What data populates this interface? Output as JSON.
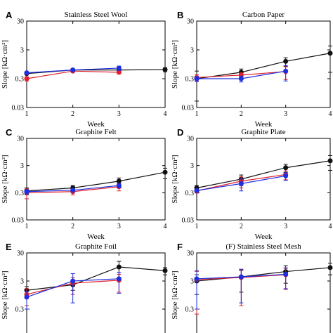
{
  "figure": {
    "ylabel": "Slope [kΩ·cm²]",
    "xlabel": "Week"
  },
  "colors": {
    "black": "#111111",
    "red": "#e0202a",
    "blue": "#1f2fe0",
    "axis": "#000000"
  },
  "chart_data": [
    {
      "letter": "A",
      "type": "line",
      "scale": "log",
      "title": "Stainless Steel Wool",
      "xlabel": "Week",
      "ylabel": "Slope [kΩ·cm²]",
      "xlim": [
        1,
        4
      ],
      "ylim": [
        0.03,
        30
      ],
      "xticks": [
        "1",
        "2",
        "3",
        "4"
      ],
      "yticks": [
        "0.03",
        "0.3",
        "3",
        "30"
      ],
      "series": [
        {
          "color": "black",
          "x": [
            1,
            2,
            3,
            4
          ],
          "y": [
            0.45,
            0.6,
            0.6,
            0.62
          ],
          "err": [
            0.03,
            0.04,
            0.04,
            0.1
          ]
        },
        {
          "color": "red",
          "x": [
            1,
            2,
            3
          ],
          "y": [
            0.3,
            0.55,
            0.5
          ],
          "err": [
            0.05,
            0.04,
            0.06
          ]
        },
        {
          "color": "blue",
          "x": [
            1,
            2,
            3
          ],
          "y": [
            0.48,
            0.6,
            0.7
          ],
          "err": [
            0.03,
            0.05,
            0.12
          ]
        }
      ]
    },
    {
      "letter": "B",
      "type": "line",
      "scale": "log",
      "title": "Carbon Paper",
      "xlabel": "Week",
      "ylabel": "Slope [kΩ·cm²]",
      "xlim": [
        1,
        4
      ],
      "ylim": [
        0.03,
        30
      ],
      "xticks": [
        "1",
        "2",
        "3",
        "4"
      ],
      "yticks": [
        "0.03",
        "0.3",
        "3",
        "30"
      ],
      "series": [
        {
          "color": "black",
          "x": [
            1,
            2,
            3,
            4
          ],
          "y": [
            0.3,
            0.5,
            1.2,
            2.3
          ],
          "err": [
            0.25,
            0.15,
            0.4,
            1.8
          ]
        },
        {
          "color": "red",
          "x": [
            1,
            2,
            3
          ],
          "y": [
            0.33,
            0.4,
            0.53
          ],
          "err": [
            0.08,
            0.08,
            0.25
          ]
        },
        {
          "color": "blue",
          "x": [
            1,
            2,
            3
          ],
          "y": [
            0.3,
            0.3,
            0.55
          ],
          "err": [
            0.06,
            0.07,
            0.3
          ]
        }
      ]
    },
    {
      "letter": "C",
      "type": "line",
      "scale": "log",
      "title": "Graphite Felt",
      "xlabel": "Week",
      "ylabel": "Slope [kΩ·cm²]",
      "xlim": [
        1,
        4
      ],
      "ylim": [
        0.03,
        30
      ],
      "xticks": [
        "1",
        "2",
        "3",
        "4"
      ],
      "yticks": [
        "0.03",
        "0.3",
        "3",
        "30"
      ],
      "series": [
        {
          "color": "black",
          "x": [
            1,
            2,
            3,
            4
          ],
          "y": [
            0.35,
            0.45,
            0.8,
            1.7
          ],
          "err": [
            0.1,
            0.1,
            0.25,
            0.7
          ]
        },
        {
          "color": "red",
          "x": [
            1,
            2,
            3
          ],
          "y": [
            0.3,
            0.33,
            0.5
          ],
          "err": [
            0.12,
            0.08,
            0.15
          ]
        },
        {
          "color": "blue",
          "x": [
            1,
            2,
            3
          ],
          "y": [
            0.33,
            0.37,
            0.55
          ],
          "err": [
            0.06,
            0.05,
            0.1
          ]
        }
      ]
    },
    {
      "letter": "D",
      "type": "line",
      "scale": "log",
      "title": "Graphite Plate",
      "xlabel": "Week",
      "ylabel": "Slope [kΩ·cm²]",
      "xlim": [
        1,
        4
      ],
      "ylim": [
        0.03,
        30
      ],
      "xticks": [
        "1",
        "2",
        "3",
        "4"
      ],
      "yticks": [
        "0.03",
        "0.3",
        "3",
        "30"
      ],
      "series": [
        {
          "color": "black",
          "x": [
            1,
            2,
            3,
            4
          ],
          "y": [
            0.45,
            0.95,
            2.5,
            4.5
          ],
          "err": [
            0.1,
            0.4,
            0.8,
            2.5
          ]
        },
        {
          "color": "red",
          "x": [
            1,
            2,
            3
          ],
          "y": [
            0.35,
            0.8,
            1.4
          ],
          "err": [
            0.06,
            0.35,
            0.5
          ]
        },
        {
          "color": "blue",
          "x": [
            1,
            2,
            3
          ],
          "y": [
            0.36,
            0.65,
            1.25
          ],
          "err": [
            0.05,
            0.3,
            0.4
          ]
        }
      ]
    },
    {
      "letter": "E",
      "type": "line",
      "scale": "log",
      "title": "Graphite Foil",
      "xlabel": "Week",
      "ylabel": "Slope [kΩ·cm²]",
      "xlim": [
        1,
        4
      ],
      "ylim": [
        0.03,
        30
      ],
      "xticks": [
        "1",
        "2",
        "3",
        "4"
      ],
      "yticks": [
        "0.03",
        "0.3",
        "3",
        "30"
      ],
      "series": [
        {
          "color": "black",
          "x": [
            1,
            2,
            3,
            4
          ],
          "y": [
            1.4,
            2.2,
            9.5,
            7.0
          ],
          "err": [
            0.5,
            0.8,
            5.5,
            2.0
          ]
        },
        {
          "color": "red",
          "x": [
            1,
            2,
            3
          ],
          "y": [
            1.0,
            2.5,
            3.2
          ],
          "err": [
            0.6,
            1.5,
            2.0
          ]
        },
        {
          "color": "blue",
          "x": [
            1,
            2,
            3
          ],
          "y": [
            0.8,
            3.0,
            3.6
          ],
          "err": [
            0.5,
            2.5,
            2.5
          ]
        }
      ]
    },
    {
      "letter": "F",
      "type": "line",
      "scale": "log",
      "title": "(F) Stainless Steel Mesh",
      "xlabel": "Week",
      "ylabel": "Slope [kΩ·cm²]",
      "xlim": [
        1,
        4
      ],
      "ylim": [
        0.03,
        30
      ],
      "xticks": [
        "1",
        "2",
        "3",
        "4"
      ],
      "yticks": [
        "0.03",
        "0.3",
        "3",
        "30"
      ],
      "series": [
        {
          "color": "black",
          "x": [
            1,
            2,
            3,
            4
          ],
          "y": [
            3.0,
            4.2,
            6.5,
            9.0
          ],
          "err": [
            2.0,
            3.0,
            4.0,
            4.0
          ]
        },
        {
          "color": "red",
          "x": [
            1,
            2,
            3
          ],
          "y": [
            3.4,
            4.0,
            5.0
          ],
          "err": [
            3.2,
            3.6,
            3.5
          ]
        },
        {
          "color": "blue",
          "x": [
            1,
            2,
            3
          ],
          "y": [
            3.6,
            4.2,
            5.2
          ],
          "err": [
            3.3,
            3.7,
            3.6
          ]
        }
      ]
    }
  ]
}
